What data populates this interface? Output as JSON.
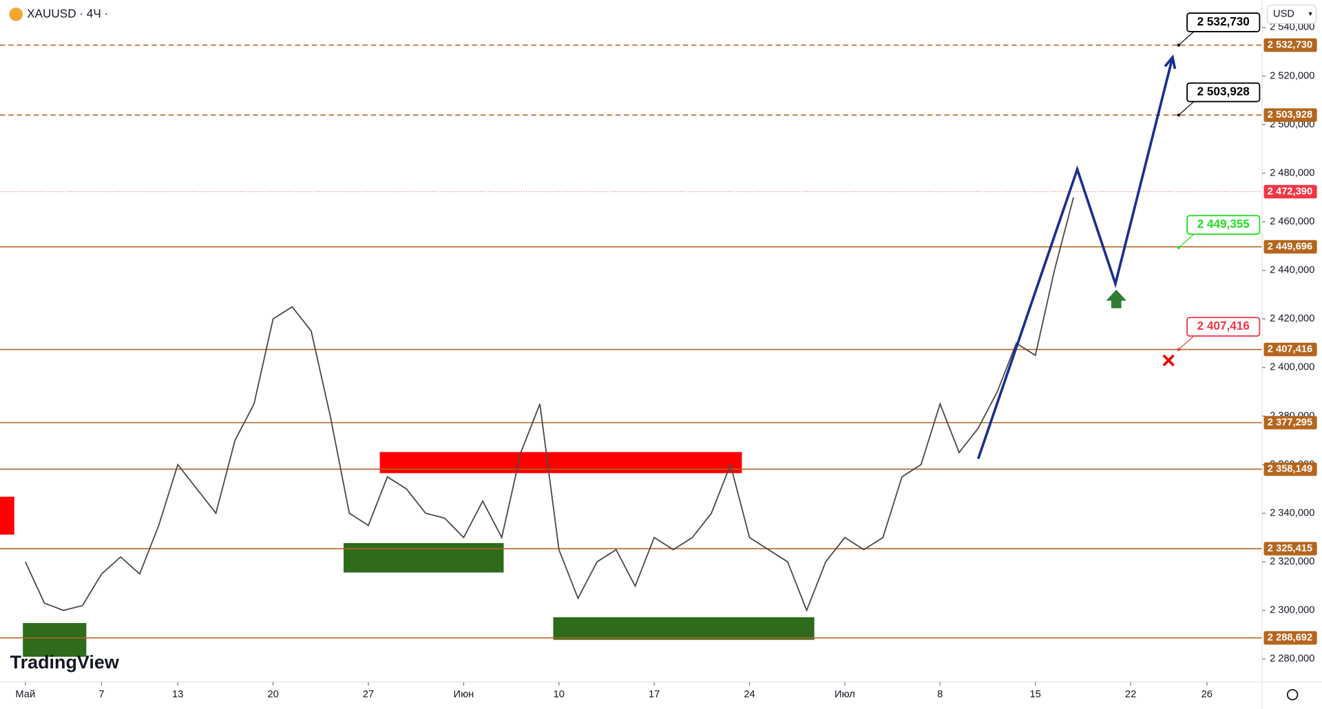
{
  "header": {
    "symbol": "XAUUSD · 4Ч ·",
    "currency": "USD",
    "logo": "TradingView"
  },
  "chart_data": {
    "type": "line",
    "color": "#4a4a4a",
    "x": [
      0,
      1,
      2,
      3,
      4,
      5,
      6,
      7,
      8,
      9,
      10,
      11,
      12,
      13,
      14,
      15,
      16,
      17,
      18,
      19,
      20,
      21,
      22,
      23,
      24,
      25,
      26,
      27,
      28,
      29,
      30,
      31,
      32,
      33,
      34,
      35,
      36,
      37,
      38,
      39,
      40,
      41,
      42,
      43,
      44,
      45,
      46,
      47,
      48,
      49,
      50,
      51,
      52,
      53,
      54,
      55
    ],
    "values": [
      2320,
      2303,
      2300,
      2302,
      2315,
      2322,
      2315,
      2335,
      2360,
      2350,
      2340,
      2370,
      2385,
      2420,
      2425,
      2415,
      2380,
      2340,
      2335,
      2355,
      2350,
      2340,
      2338,
      2330,
      2345,
      2330,
      2365,
      2385,
      2325,
      2305,
      2320,
      2325,
      2310,
      2330,
      2325,
      2330,
      2340,
      2360,
      2330,
      2325,
      2320,
      2300,
      2320,
      2330,
      2325,
      2330,
      2355,
      2360,
      2385,
      2365,
      2375,
      2390,
      2410,
      2405,
      2440,
      2470
    ],
    "xlim": [
      -1.33,
      64.9
    ],
    "ylim": [
      2270.5,
      2551.3
    ],
    "xticks": [
      {
        "value": 0,
        "label": "Май"
      },
      {
        "value": 4,
        "label": "7"
      },
      {
        "value": 8,
        "label": "13"
      },
      {
        "value": 13,
        "label": "20"
      },
      {
        "value": 18,
        "label": "27"
      },
      {
        "value": 23,
        "label": "Июн"
      },
      {
        "value": 28,
        "label": "10"
      },
      {
        "value": 33,
        "label": "17"
      },
      {
        "value": 38,
        "label": "24"
      },
      {
        "value": 43,
        "label": "Июл"
      },
      {
        "value": 48,
        "label": "8"
      },
      {
        "value": 53,
        "label": "15"
      },
      {
        "value": 58,
        "label": "22"
      },
      {
        "value": 62,
        "label": "26"
      }
    ],
    "yticks": [
      {
        "value": 2280,
        "label": "2 280,000"
      },
      {
        "value": 2300,
        "label": "2 300,000"
      },
      {
        "value": 2320,
        "label": "2 320,000"
      },
      {
        "value": 2340,
        "label": "2 340,000"
      },
      {
        "value": 2360,
        "label": "2 360,000"
      },
      {
        "value": 2380,
        "label": "2 380,000"
      },
      {
        "value": 2400,
        "label": "2 400,000"
      },
      {
        "value": 2420,
        "label": "2 420,000"
      },
      {
        "value": 2440,
        "label": "2 440,000"
      },
      {
        "value": 2460,
        "label": "2 460,000"
      },
      {
        "value": 2480,
        "label": "2 480,000"
      },
      {
        "value": 2500,
        "label": "2 500,000"
      },
      {
        "value": 2520,
        "label": "2 520,000"
      },
      {
        "value": 2540,
        "label": "2 540,000"
      }
    ],
    "levels": [
      {
        "value": 2532.73,
        "label": "2 532,730",
        "style": "dashed",
        "color": "#b5651d"
      },
      {
        "value": 2503.928,
        "label": "2 503,928",
        "style": "dashed",
        "color": "#b5651d"
      },
      {
        "value": 2472.39,
        "label": "2 472,390",
        "style": "dotted",
        "color": "#f23645"
      },
      {
        "value": 2449.696,
        "label": "2 449,696",
        "style": "solid",
        "color": "#b5651d"
      },
      {
        "value": 2407.416,
        "label": "2 407,416",
        "style": "solid",
        "color": "#b5651d"
      },
      {
        "value": 2377.295,
        "label": "2 377,295",
        "style": "solid",
        "color": "#b5651d"
      },
      {
        "value": 2358.149,
        "label": "2 358,149",
        "style": "solid",
        "color": "#b5651d"
      },
      {
        "value": 2325.415,
        "label": "2 325,415",
        "style": "solid",
        "color": "#b5651d"
      },
      {
        "value": 2288.692,
        "label": "2 288,692",
        "style": "solid",
        "color": "#b5651d"
      }
    ],
    "callouts": [
      {
        "value": 2532.73,
        "label": "2 532,730",
        "color": "#000000"
      },
      {
        "value": 2503.928,
        "label": "2 503,928",
        "color": "#000000"
      },
      {
        "value": 2449.355,
        "label": "2 449,355",
        "color": "#22dd22"
      },
      {
        "value": 2407.416,
        "label": "2 407,416",
        "color": "#f23645"
      }
    ],
    "zones": [
      {
        "color": "#ff0000",
        "x": [
          18.6,
          37.6
        ],
        "y": [
          2356.5,
          2365.2
        ]
      },
      {
        "color": "#2e6b1c",
        "x": [
          16.7,
          25.1
        ],
        "y": [
          2315.6,
          2327.7
        ]
      },
      {
        "color": "#2e6b1c",
        "x": [
          27.7,
          41.4
        ],
        "y": [
          2287.9,
          2297.2
        ]
      },
      {
        "color": "#2e6b1c",
        "x": [
          -0.13,
          3.2
        ],
        "y": [
          2280.9,
          2294.8
        ]
      },
      {
        "color": "#ff0000",
        "x": [
          -1.33,
          -0.58
        ],
        "y": [
          2331.2,
          2346.8
        ]
      }
    ],
    "forecast": {
      "x": [
        50,
        55.2,
        57.2,
        60.2
      ],
      "values": [
        2362.4,
        2481.6,
        2434.5,
        2527.7
      ],
      "color": "#1a2f8f"
    }
  }
}
